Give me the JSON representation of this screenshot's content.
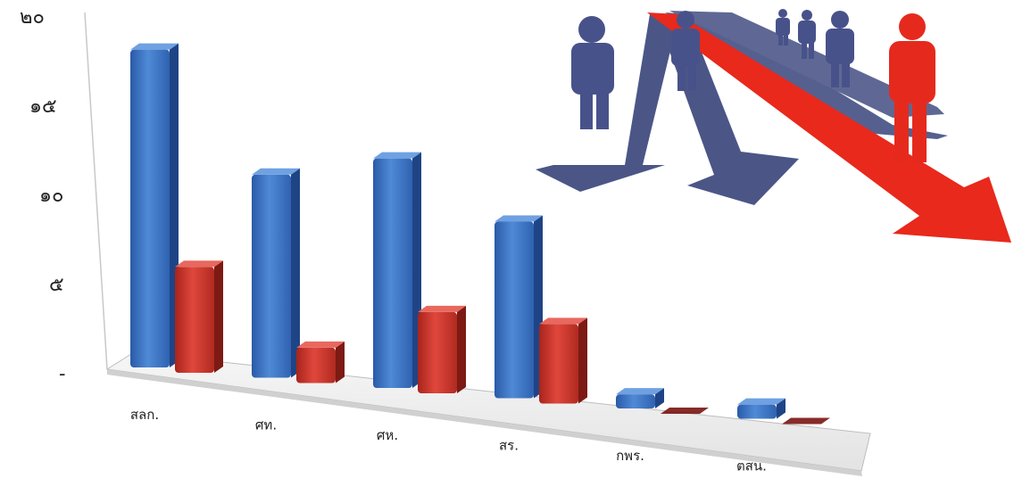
{
  "chart_data": {
    "type": "bar",
    "title": "",
    "xlabel": "",
    "ylabel": "",
    "ylim": [
      0,
      20
    ],
    "y_ticks": [
      {
        "value": 0,
        "label": "-"
      },
      {
        "value": 5,
        "label": "๕"
      },
      {
        "value": 10,
        "label": "๑๐"
      },
      {
        "value": 15,
        "label": "๑๕"
      },
      {
        "value": 20,
        "label": "๒๐"
      }
    ],
    "categories": [
      "สลก.",
      "ศท.",
      "ศห.",
      "สร.",
      "กพร.",
      "ตสน."
    ],
    "series": [
      {
        "values": [
          18,
          11.5,
          13,
          10,
          0.8,
          0.8
        ],
        "color": "#3a6fc0"
      },
      {
        "values": [
          6,
          2,
          4.6,
          4.5,
          0,
          0
        ],
        "color": "#c0392b"
      }
    ],
    "grid": false,
    "legend": "none",
    "style": "3d",
    "decoration": "people-arrows-illustration"
  }
}
